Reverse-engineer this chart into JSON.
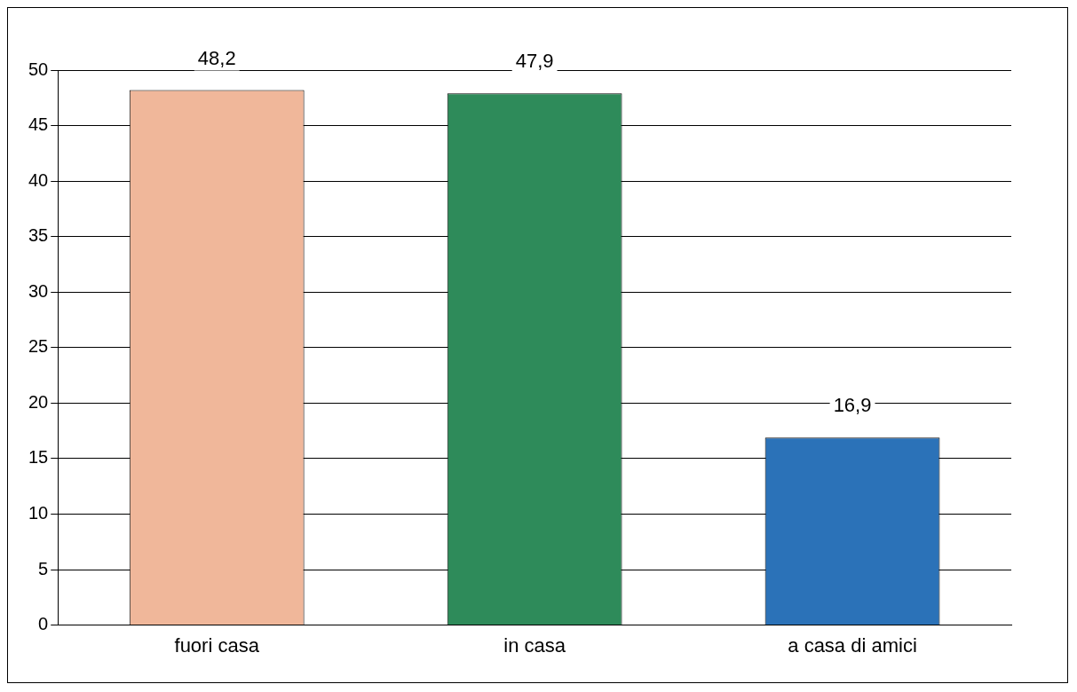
{
  "chart_data": {
    "type": "bar",
    "categories": [
      "fuori casa",
      "in casa",
      "a casa di amici"
    ],
    "values": [
      48.2,
      47.9,
      16.9
    ],
    "colors": [
      "#f0b79a",
      "#2e8b5a",
      "#2b72b8"
    ],
    "value_labels": [
      "48,2",
      "47,9",
      "16,9"
    ],
    "ylim": [
      0,
      50
    ],
    "yticks": [
      0,
      5,
      10,
      15,
      20,
      25,
      30,
      35,
      40,
      45,
      50
    ],
    "grid": "y",
    "legend": false
  }
}
